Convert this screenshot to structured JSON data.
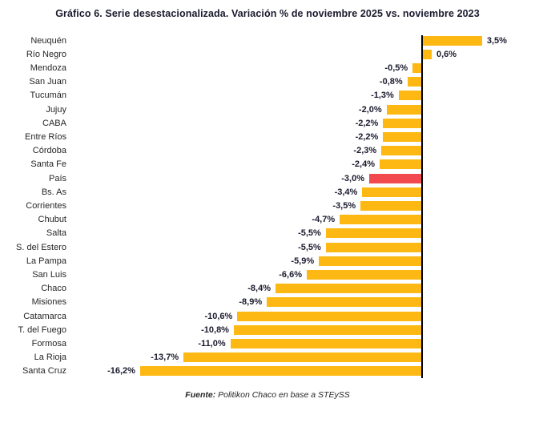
{
  "title": "Gráfico 6. Serie desestacionalizada. Variación % de noviembre 2025 vs. noviembre 2023",
  "footer": {
    "prefix": "Fuente:",
    "text": " Politikon Chaco en base a STEySS"
  },
  "colors": {
    "bar": "#FDB813",
    "highlight_bar": "#F2494F",
    "axis": "#000000",
    "label_text": "#262626",
    "value_text": "#1a1a2e"
  },
  "chart_data": {
    "type": "bar",
    "orientation": "horizontal",
    "unit": "%",
    "title": "Gráfico 6. Serie desestacionalizada. Variación % de noviembre 2025 vs. noviembre 2023",
    "xlabel": "",
    "ylabel": "",
    "xlim": [
      -20,
      6.5
    ],
    "grid": false,
    "legend": "none",
    "value_labels_position": "outside-bar-ends",
    "highlight_category": "País",
    "highlight_index": 10,
    "categories": [
      "Neuquén",
      "Río Negro",
      "Mendoza",
      "San Juan",
      "Tucumán",
      "Jujuy",
      "CABA",
      "Entre Ríos",
      "Córdoba",
      "Santa Fe",
      "País",
      "Bs. As",
      "Corrientes",
      "Chubut",
      "Salta",
      "S. del Estero",
      "La Pampa",
      "San Luis",
      "Chaco",
      "Misiones",
      "Catamarca",
      "T. del Fuego",
      "Formosa",
      "La Rioja",
      "Santa Cruz"
    ],
    "values": [
      3.5,
      0.6,
      -0.5,
      -0.8,
      -1.3,
      -2.0,
      -2.2,
      -2.2,
      -2.3,
      -2.4,
      -3.0,
      -3.4,
      -3.5,
      -4.7,
      -5.5,
      -5.5,
      -5.9,
      -6.6,
      -8.4,
      -8.9,
      -10.6,
      -10.8,
      -11.0,
      -13.7,
      -16.2
    ],
    "labels": [
      "3,5%",
      "0,6%",
      "-0,5%",
      "-0,8%",
      "-1,3%",
      "-2,0%",
      "-2,2%",
      "-2,2%",
      "-2,3%",
      "-2,4%",
      "-3,0%",
      "-3,4%",
      "-3,5%",
      "-4,7%",
      "-5,5%",
      "-5,5%",
      "-5,9%",
      "-6,6%",
      "-8,4%",
      "-8,9%",
      "-10,6%",
      "-10,8%",
      "-11,0%",
      "-13,7%",
      "-16,2%"
    ]
  }
}
